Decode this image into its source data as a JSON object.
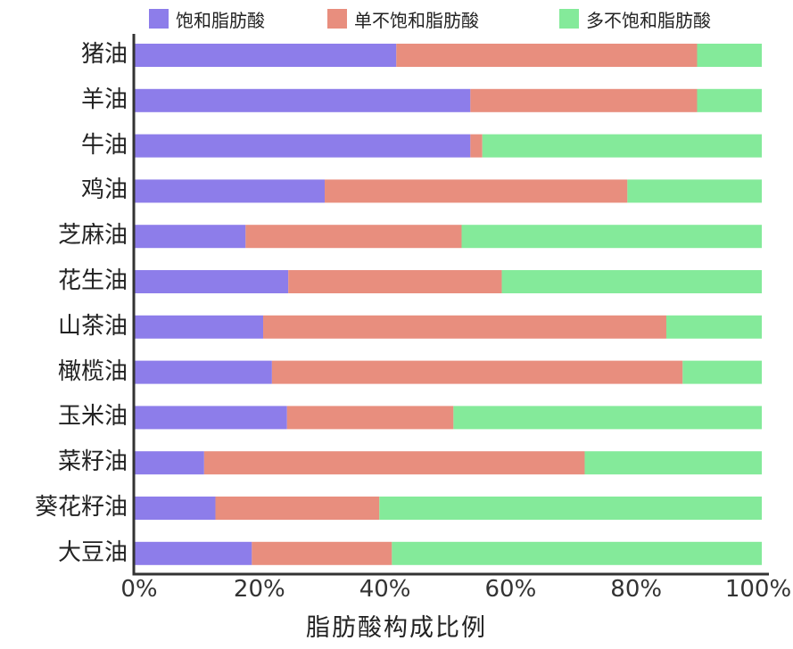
{
  "chart_data": {
    "type": "bar",
    "orientation": "horizontal",
    "stacked": true,
    "percent": true,
    "title": "",
    "xlabel": "脂肪酸构成比例",
    "ylabel": "",
    "xlim": [
      0,
      100
    ],
    "x_ticks": [
      "0%",
      "20%",
      "40%",
      "60%",
      "80%",
      "100%"
    ],
    "legend_position": "top",
    "categories": [
      "猪油",
      "羊油",
      "牛油",
      "鸡油",
      "芝麻油",
      "花生油",
      "山茶油",
      "橄榄油",
      "玉米油",
      "菜籽油",
      "葵花籽油",
      "大豆油"
    ],
    "series": [
      {
        "name": "饱和脂肪酸",
        "color": "#8d7dea",
        "values": [
          41.8,
          53.6,
          53.6,
          30.4,
          17.8,
          24.6,
          20.6,
          22.0,
          24.4,
          11.2,
          13.0,
          18.8
        ]
      },
      {
        "name": "单不饱和脂肪酸",
        "color": "#e88e7e",
        "values": [
          47.9,
          36.1,
          1.9,
          48.2,
          34.4,
          34.0,
          64.2,
          65.4,
          26.5,
          60.6,
          26.1,
          22.3
        ]
      },
      {
        "name": "多不饱和脂肪酸",
        "color": "#84ea9a",
        "values": [
          10.3,
          10.3,
          44.5,
          21.4,
          47.8,
          41.4,
          15.2,
          12.6,
          49.1,
          28.2,
          60.9,
          58.9
        ]
      }
    ]
  }
}
